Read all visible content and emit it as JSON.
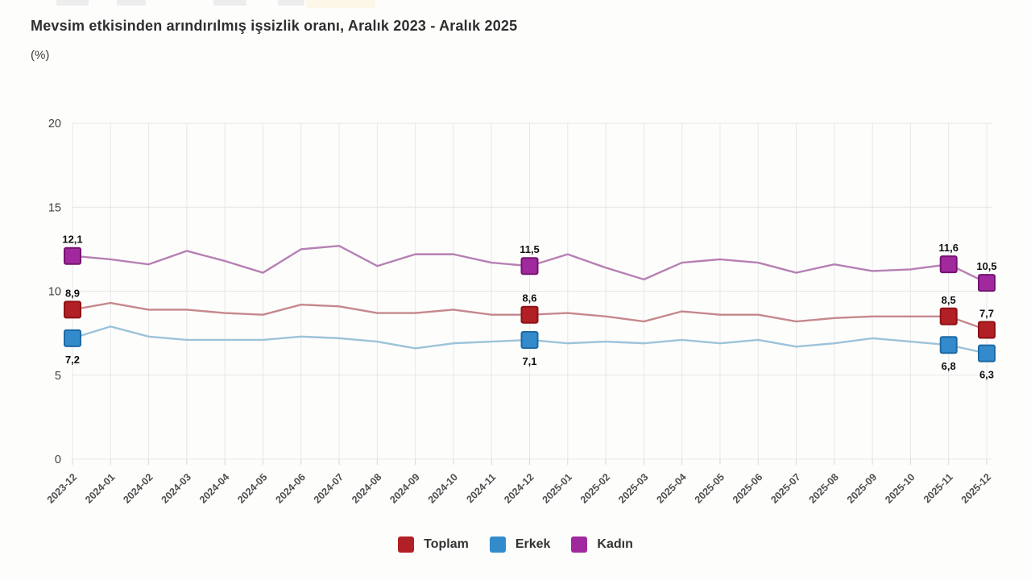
{
  "page": {
    "title": "Mevsim etkisinden arındırılmış işsizlik oranı, Aralık 2023 - Aralık 2025",
    "subtitle": "(%)"
  },
  "chart_data": {
    "type": "line",
    "title": "Mevsim etkisinden arındırılmış işsizlik oranı, Aralık 2023 - Aralık 2025",
    "subtitle": "(%)",
    "xlabel": "",
    "ylabel": "(%)",
    "ylim": [
      0,
      20
    ],
    "yticks": [
      0,
      5,
      10,
      15,
      20
    ],
    "grid": true,
    "legend_position": "bottom-center",
    "decimal_separator": ",",
    "gridline_color": "#e7e7e7",
    "tick_color": "#d8d8d8",
    "categories": [
      "2023-12",
      "2024-01",
      "2024-02",
      "2024-03",
      "2024-04",
      "2024-05",
      "2024-06",
      "2024-07",
      "2024-08",
      "2024-09",
      "2024-10",
      "2024-11",
      "2024-12",
      "2025-01",
      "2025-02",
      "2025-03",
      "2025-04",
      "2025-05",
      "2025-06",
      "2025-07",
      "2025-08",
      "2025-09",
      "2025-10",
      "2025-11",
      "2025-12"
    ],
    "labeled_indices": [
      0,
      12,
      23,
      24
    ],
    "labeled_values_text": {
      "Toplam": [
        "8,9",
        "8,6",
        "8,5",
        "7,7"
      ],
      "Erkek": [
        "7,2",
        "7,1",
        "6,8",
        "6,3"
      ],
      "Kadın": [
        "12,1",
        "11,5",
        "11,6",
        "10,5"
      ]
    },
    "series": [
      {
        "name": "Toplam",
        "marker_color": "#b12025",
        "marker_stroke": "#8c1216",
        "line_color": "#c5888c",
        "label_side": "above",
        "values": [
          8.9,
          9.3,
          8.9,
          8.9,
          8.7,
          8.6,
          9.2,
          9.1,
          8.7,
          8.7,
          8.9,
          8.6,
          8.6,
          8.7,
          8.5,
          8.2,
          8.8,
          8.6,
          8.6,
          8.2,
          8.4,
          8.5,
          8.5,
          8.5,
          7.7
        ]
      },
      {
        "name": "Erkek",
        "marker_color": "#338bcb",
        "marker_stroke": "#1d6aa4",
        "line_color": "#9cc3d9",
        "label_side": "below",
        "values": [
          7.2,
          7.9,
          7.3,
          7.1,
          7.1,
          7.1,
          7.3,
          7.2,
          7.0,
          6.6,
          6.9,
          7.0,
          7.1,
          6.9,
          7.0,
          6.9,
          7.1,
          6.9,
          7.1,
          6.7,
          6.9,
          7.2,
          7.0,
          6.8,
          6.3
        ]
      },
      {
        "name": "Kadın",
        "marker_color": "#a02a9d",
        "marker_stroke": "#761372",
        "line_color": "#b680b3",
        "label_side": "above",
        "values": [
          12.1,
          11.9,
          11.6,
          12.4,
          11.8,
          11.1,
          12.5,
          12.7,
          11.5,
          12.2,
          12.2,
          11.7,
          11.5,
          12.2,
          11.4,
          10.7,
          11.7,
          11.9,
          11.7,
          11.1,
          11.6,
          11.2,
          11.3,
          11.6,
          10.5
        ]
      }
    ],
    "legend": [
      {
        "label": "Toplam",
        "color": "#b12025"
      },
      {
        "label": "Erkek",
        "color": "#338bcb"
      },
      {
        "label": "Kadın",
        "color": "#a02a9d"
      }
    ]
  }
}
